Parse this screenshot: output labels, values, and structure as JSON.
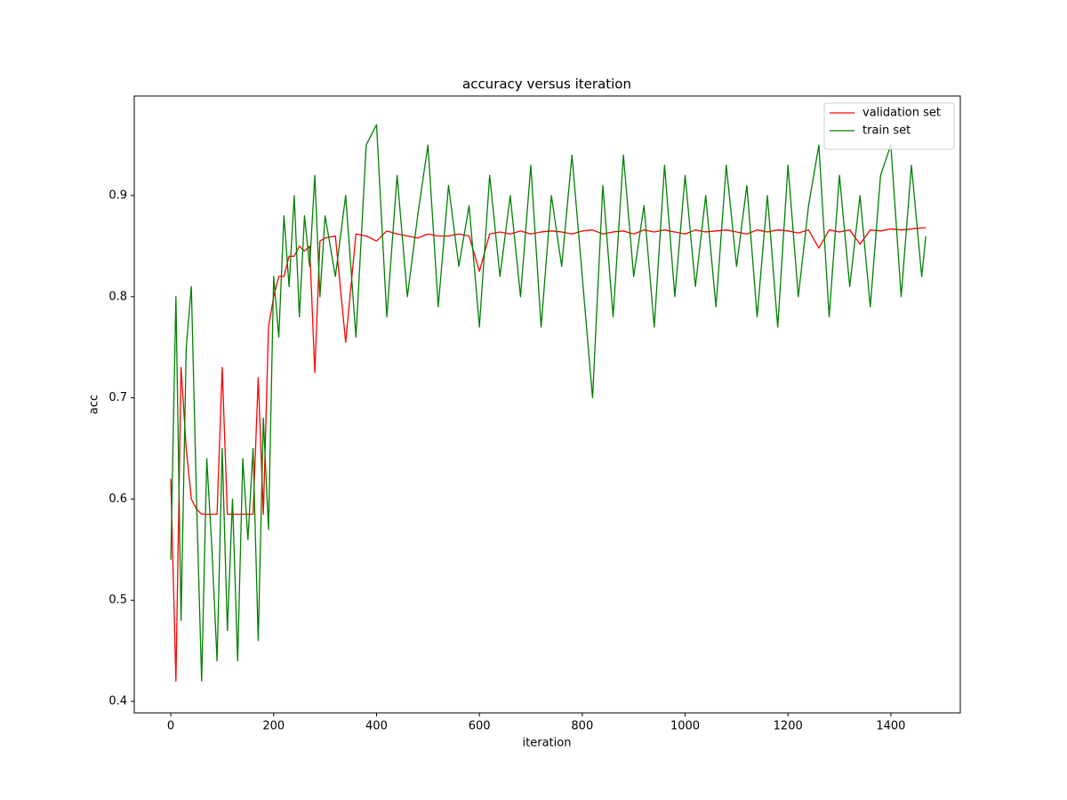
{
  "chart_data": {
    "type": "line",
    "title": "accuracy versus iteration",
    "x_label": "iteration",
    "y_label": "acc",
    "x": [
      0,
      10,
      20,
      30,
      40,
      50,
      60,
      70,
      80,
      90,
      100,
      110,
      120,
      130,
      140,
      150,
      160,
      170,
      180,
      190,
      200,
      210,
      220,
      230,
      240,
      250,
      260,
      270,
      280,
      290,
      300,
      320,
      340,
      360,
      380,
      400,
      420,
      440,
      460,
      480,
      500,
      520,
      540,
      560,
      580,
      600,
      620,
      640,
      660,
      680,
      700,
      720,
      740,
      760,
      780,
      800,
      820,
      840,
      860,
      880,
      900,
      920,
      940,
      960,
      980,
      1000,
      1020,
      1040,
      1060,
      1080,
      1100,
      1120,
      1140,
      1160,
      1180,
      1200,
      1220,
      1240,
      1260,
      1280,
      1300,
      1320,
      1340,
      1360,
      1380,
      1400,
      1420,
      1440,
      1460,
      1468
    ],
    "series": [
      {
        "name": "validation set",
        "color": "#ff0000",
        "values": [
          0.62,
          0.42,
          0.73,
          0.65,
          0.6,
          0.59,
          0.585,
          0.585,
          0.585,
          0.585,
          0.73,
          0.585,
          0.585,
          0.585,
          0.585,
          0.585,
          0.585,
          0.72,
          0.585,
          0.77,
          0.8,
          0.82,
          0.82,
          0.84,
          0.84,
          0.85,
          0.845,
          0.85,
          0.725,
          0.855,
          0.858,
          0.86,
          0.755,
          0.862,
          0.86,
          0.855,
          0.865,
          0.862,
          0.86,
          0.858,
          0.862,
          0.86,
          0.86,
          0.862,
          0.86,
          0.825,
          0.862,
          0.864,
          0.862,
          0.865,
          0.862,
          0.864,
          0.865,
          0.864,
          0.862,
          0.865,
          0.866,
          0.862,
          0.864,
          0.865,
          0.862,
          0.866,
          0.864,
          0.866,
          0.864,
          0.862,
          0.866,
          0.864,
          0.865,
          0.866,
          0.864,
          0.862,
          0.866,
          0.864,
          0.866,
          0.865,
          0.863,
          0.866,
          0.848,
          0.866,
          0.864,
          0.866,
          0.852,
          0.866,
          0.865,
          0.867,
          0.866,
          0.867,
          0.868,
          0.868
        ]
      },
      {
        "name": "train set",
        "color": "#008000",
        "values": [
          0.54,
          0.8,
          0.48,
          0.75,
          0.81,
          0.6,
          0.42,
          0.64,
          0.55,
          0.44,
          0.65,
          0.47,
          0.6,
          0.44,
          0.64,
          0.56,
          0.65,
          0.46,
          0.68,
          0.57,
          0.82,
          0.76,
          0.88,
          0.81,
          0.9,
          0.78,
          0.88,
          0.83,
          0.92,
          0.8,
          0.88,
          0.82,
          0.9,
          0.76,
          0.95,
          0.97,
          0.78,
          0.92,
          0.8,
          0.88,
          0.95,
          0.79,
          0.91,
          0.83,
          0.89,
          0.77,
          0.92,
          0.82,
          0.9,
          0.8,
          0.93,
          0.77,
          0.9,
          0.83,
          0.94,
          0.82,
          0.7,
          0.91,
          0.78,
          0.94,
          0.82,
          0.89,
          0.77,
          0.93,
          0.8,
          0.92,
          0.81,
          0.9,
          0.79,
          0.93,
          0.83,
          0.91,
          0.78,
          0.9,
          0.77,
          0.93,
          0.8,
          0.89,
          0.95,
          0.78,
          0.92,
          0.81,
          0.9,
          0.79,
          0.92,
          0.95,
          0.8,
          0.93,
          0.82,
          0.86
        ]
      }
    ],
    "xlim": [
      -71,
      1535
    ],
    "ylim": [
      0.3886,
      0.9984
    ],
    "xticks": [
      0,
      200,
      400,
      600,
      800,
      1000,
      1200,
      1400
    ],
    "yticks": [
      0.4,
      0.5,
      0.6,
      0.7,
      0.8,
      0.9
    ],
    "legend": "upper right"
  }
}
